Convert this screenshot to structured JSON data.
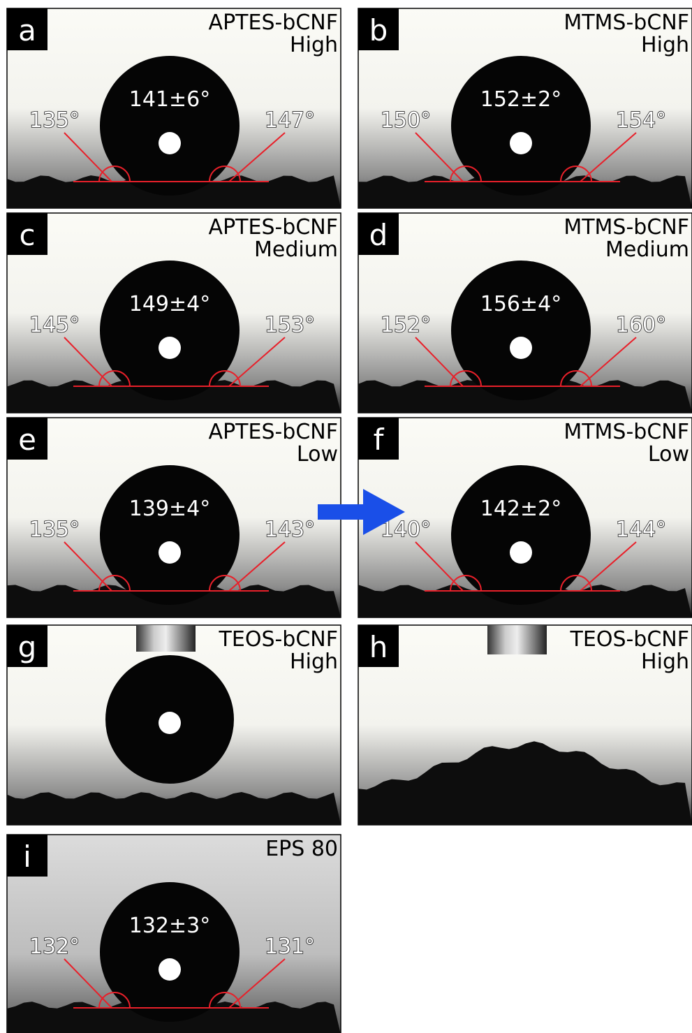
{
  "panels": [
    {
      "letter": "a",
      "title": "APTES-bCNF",
      "subtitle": "High",
      "mean": "141±6°",
      "left": "135°",
      "right": "147°"
    },
    {
      "letter": "b",
      "title": "MTMS-bCNF",
      "subtitle": "High",
      "mean": "152±2°",
      "left": "150°",
      "right": "154°"
    },
    {
      "letter": "c",
      "title": "APTES-bCNF",
      "subtitle": "Medium",
      "mean": "149±4°",
      "left": "145°",
      "right": "153°"
    },
    {
      "letter": "d",
      "title": "MTMS-bCNF",
      "subtitle": "Medium",
      "mean": "156±4°",
      "left": "152°",
      "right": "160°"
    },
    {
      "letter": "e",
      "title": "APTES-bCNF",
      "subtitle": "Low",
      "mean": "139±4°",
      "left": "135°",
      "right": "143°"
    },
    {
      "letter": "f",
      "title": "MTMS-bCNF",
      "subtitle": "Low",
      "mean": "142±2°",
      "left": "140°",
      "right": "144°"
    },
    {
      "letter": "g",
      "title": "TEOS-bCNF",
      "subtitle": "High"
    },
    {
      "letter": "h",
      "title": "TEOS-bCNF",
      "subtitle": "High"
    },
    {
      "letter": "i",
      "title": "EPS 80",
      "mean": "132±3°",
      "left": "132°",
      "right": "131°"
    }
  ]
}
